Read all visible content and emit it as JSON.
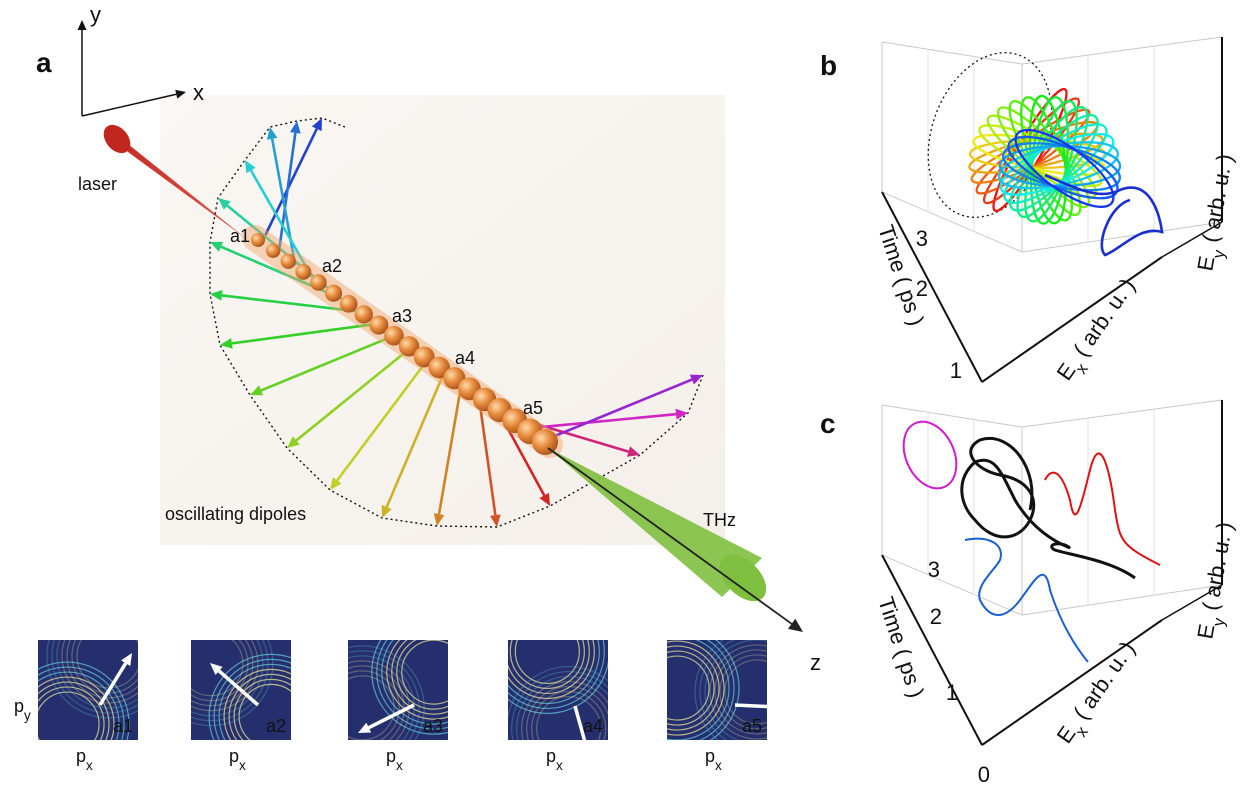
{
  "panel_a": {
    "label": "a",
    "axes": {
      "x": "x",
      "y": "y",
      "z": "z"
    },
    "laser": "laser",
    "dipoles": "oscillating dipoles",
    "thz": "THz",
    "chain_labels": [
      "a1",
      "a2",
      "a3",
      "a4",
      "a5"
    ],
    "inset_y_label": {
      "main": "p",
      "sub": "y"
    },
    "insets": [
      {
        "label": "a1",
        "x_label": {
          "main": "p",
          "sub": "x"
        }
      },
      {
        "label": "a2",
        "x_label": {
          "main": "p",
          "sub": "x"
        }
      },
      {
        "label": "a3",
        "x_label": {
          "main": "p",
          "sub": "x"
        }
      },
      {
        "label": "a4",
        "x_label": {
          "main": "p",
          "sub": "x"
        }
      },
      {
        "label": "a5",
        "x_label": {
          "main": "p",
          "sub": "x"
        }
      }
    ]
  },
  "panel_b": {
    "label": "b",
    "time_label": "Time ( ps )",
    "ex_label": {
      "main": "E",
      "sub": "x",
      "rest": " ( arb. u. )"
    },
    "ey_label": {
      "main": "E",
      "sub": "y",
      "rest": " ( arb. u. )"
    },
    "time_ticks": [
      1,
      2,
      3
    ]
  },
  "panel_c": {
    "label": "c",
    "time_label": "Time ( ps )",
    "ex_label": {
      "main": "E",
      "sub": "x",
      "rest": " ( arb. u. )"
    },
    "ey_label": {
      "main": "E",
      "sub": "y",
      "rest": " ( arb. u. )"
    },
    "time_ticks": [
      0,
      1,
      2,
      3
    ]
  }
}
